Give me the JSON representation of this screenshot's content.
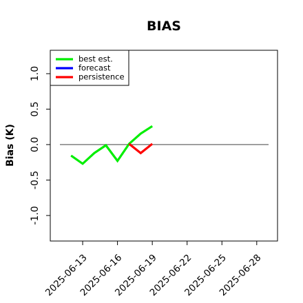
{
  "chart_data": {
    "type": "line",
    "title": "BIAS",
    "ylabel": "Bias (K)",
    "x": [
      "2025-06-12",
      "2025-06-13",
      "2025-06-14",
      "2025-06-15",
      "2025-06-16",
      "2025-06-17",
      "2025-06-18",
      "2025-06-19"
    ],
    "series": [
      {
        "name": "best est.",
        "color": "#00ee00",
        "values": [
          -0.155,
          -0.27,
          -0.12,
          -0.01,
          -0.23,
          0.01,
          0.155,
          0.26
        ]
      },
      {
        "name": "forecast",
        "color": "#0000ff",
        "values": [
          null,
          null,
          null,
          null,
          null,
          null,
          null,
          null
        ]
      },
      {
        "name": "persistence",
        "color": "#ff0000",
        "values": [
          null,
          null,
          null,
          null,
          null,
          0.01,
          -0.12,
          0.01
        ]
      }
    ],
    "xlim": [
      "2025-06-10T05:00",
      "2025-06-29T19:00"
    ],
    "xticks": [
      "2025-06-13",
      "2025-06-16",
      "2025-06-19",
      "2025-06-22",
      "2025-06-25",
      "2025-06-28"
    ],
    "highlight_date": "2025-06-19",
    "highlight_color": "#228b22",
    "ylim": [
      -1.36,
      1.33
    ],
    "yticks": [
      {
        "value": -1,
        "label": "-1.0"
      },
      {
        "value": -0.5,
        "label": "-0.5"
      },
      {
        "value": 0,
        "label": "0.0"
      },
      {
        "value": 0.5,
        "label": "0.5"
      },
      {
        "value": 1,
        "label": "1.0"
      }
    ],
    "hline": 0,
    "legend": "top-left"
  }
}
